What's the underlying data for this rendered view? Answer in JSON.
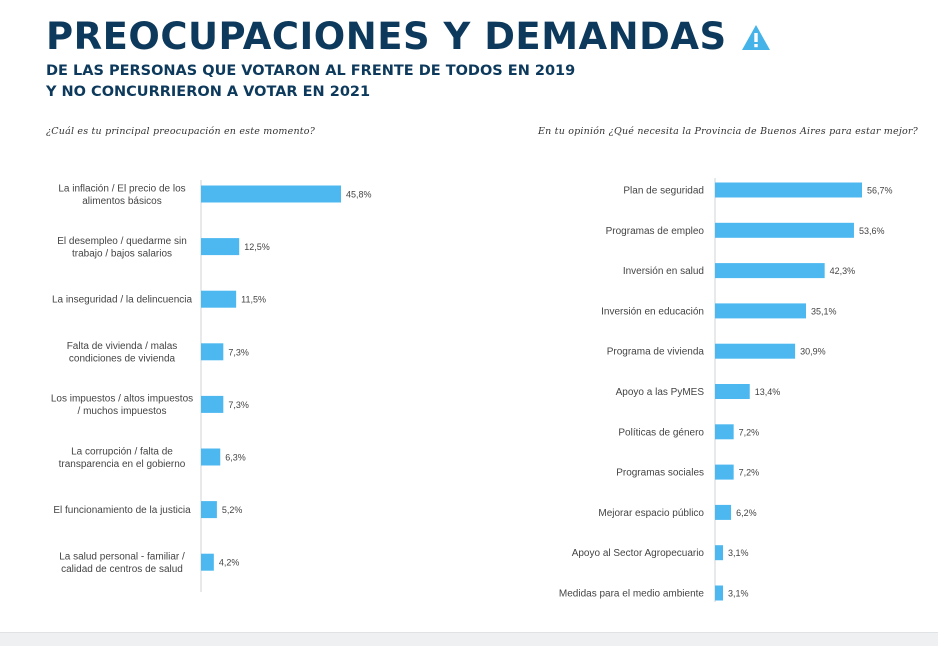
{
  "header": {
    "title": "PREOCUPACIONES Y DEMANDAS",
    "subtitle_line1": "DE LAS PERSONAS QUE VOTARON AL FRENTE DE TODOS EN 2019",
    "subtitle_line2": "Y NO CONCURRIERON A VOTAR EN 2021",
    "warning_icon": "warning-triangle-icon"
  },
  "colors": {
    "title": "#0d3a5c",
    "bar": "#4db8f0",
    "axis": "#cfd3d6",
    "warning": "#45b3e8"
  },
  "chart_data": [
    {
      "type": "bar",
      "orientation": "horizontal",
      "title": "¿Cuál es tu principal preocupación en este momento?",
      "categories": [
        "La inflación / El precio de los alimentos básicos",
        "El desempleo / quedarme sin trabajo / bajos salarios",
        "La inseguridad / la delincuencia",
        "Falta de vivienda / malas condiciones de vivienda",
        "Los impuestos / altos impuestos / muchos impuestos",
        "La corrupción / falta de transparencia en el gobierno",
        "El funcionamiento de la justicia",
        "La salud personal - familiar / calidad de centros de salud"
      ],
      "label_lines": [
        [
          "La inflación / El precio de los",
          "alimentos básicos"
        ],
        [
          "El desempleo / quedarme sin",
          "trabajo / bajos salarios"
        ],
        [
          "La inseguridad / la delincuencia"
        ],
        [
          "Falta de vivienda / malas",
          "condiciones de vivienda"
        ],
        [
          "Los impuestos / altos impuestos",
          "/ muchos impuestos"
        ],
        [
          "La corrupción / falta de",
          "transparencia en el gobierno"
        ],
        [
          "El funcionamiento de la justicia"
        ],
        [
          "La salud personal - familiar /",
          "calidad de centros de salud"
        ]
      ],
      "values": [
        45.8,
        12.5,
        11.5,
        7.3,
        7.3,
        6.3,
        5.2,
        4.2
      ],
      "value_labels": [
        "45,8%",
        "12,5%",
        "11,5%",
        "7,3%",
        "7,3%",
        "6,3%",
        "5,2%",
        "4,2%"
      ],
      "unit": "%",
      "grid": false,
      "legend": "none"
    },
    {
      "type": "bar",
      "orientation": "horizontal",
      "title": "En tu opinión ¿Qué necesita la Provincia de Buenos Aires para estar mejor?",
      "categories": [
        "Plan de seguridad",
        "Programas de empleo",
        "Inversión en salud",
        "Inversión en educación",
        "Programa de vivienda",
        "Apoyo a las PyMES",
        "Políticas de género",
        "Programas sociales",
        "Mejorar espacio público",
        "Apoyo al Sector Agropecuario",
        "Medidas para el medio ambiente"
      ],
      "values": [
        56.7,
        53.6,
        42.3,
        35.1,
        30.9,
        13.4,
        7.2,
        7.2,
        6.2,
        3.1,
        3.1
      ],
      "value_labels": [
        "56,7%",
        "53,6%",
        "42,3%",
        "35,1%",
        "30,9%",
        "13,4%",
        "7,2%",
        "7,2%",
        "6,2%",
        "3,1%",
        "3,1%"
      ],
      "unit": "%",
      "grid": false,
      "legend": "none"
    }
  ]
}
